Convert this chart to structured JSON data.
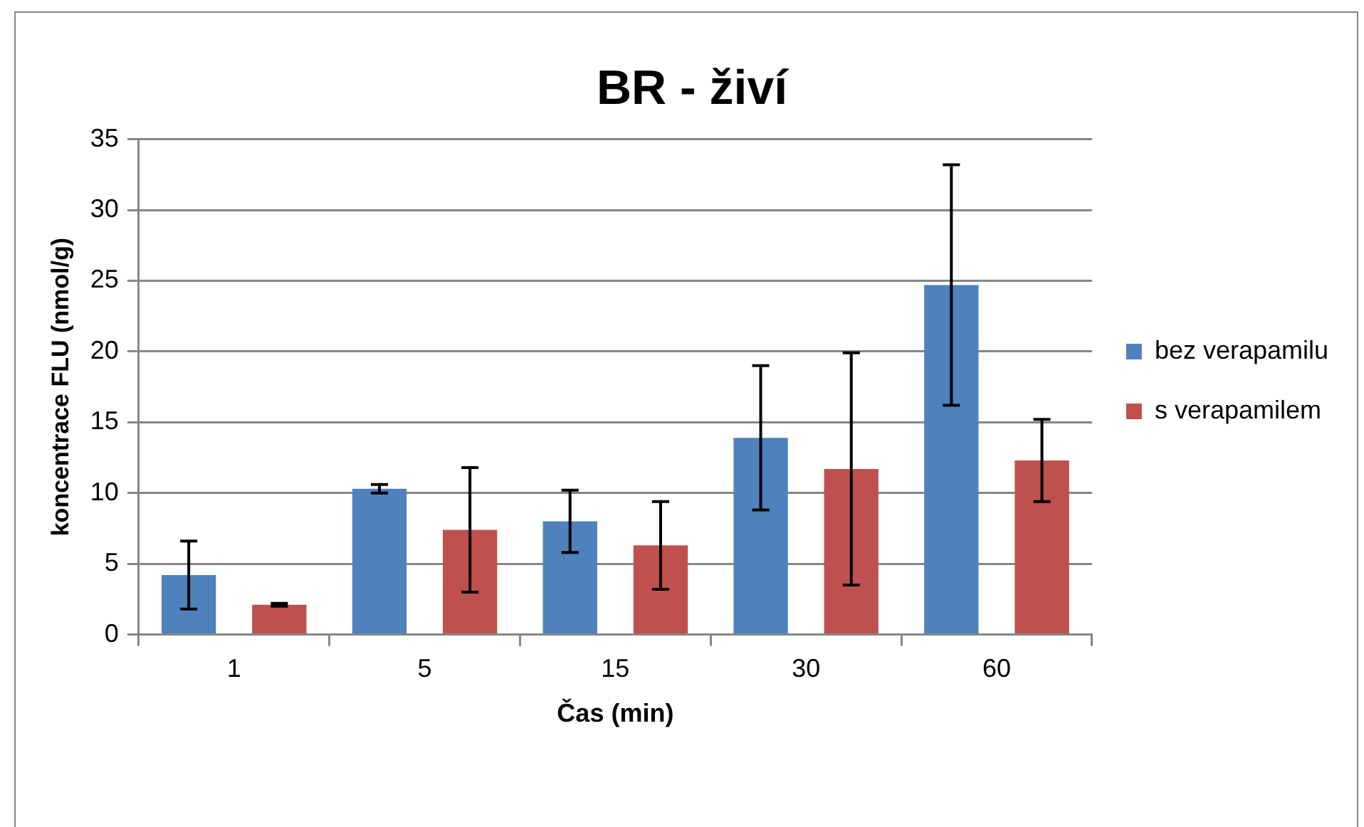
{
  "chart_data": {
    "type": "bar",
    "title": "BR - živí",
    "xlabel": "Čas (min)",
    "ylabel": "koncentrace FLU (nmol/g)",
    "categories": [
      "1",
      "5",
      "15",
      "30",
      "60"
    ],
    "series": [
      {
        "name": "bez verapamilu",
        "color": "#4f81bd",
        "values": [
          4.2,
          10.3,
          8.0,
          13.9,
          24.7
        ],
        "errors": [
          2.4,
          0.3,
          2.2,
          5.1,
          8.5
        ]
      },
      {
        "name": "s verapamilem",
        "color": "#c0504d",
        "values": [
          2.1,
          7.4,
          6.3,
          11.7,
          12.3
        ],
        "errors": [
          0.1,
          4.4,
          3.1,
          8.2,
          2.9
        ]
      }
    ],
    "ylim": [
      0,
      35
    ],
    "yticks": [
      0,
      5,
      10,
      15,
      20,
      25,
      30,
      35
    ],
    "grid": "y",
    "legend": "right"
  }
}
